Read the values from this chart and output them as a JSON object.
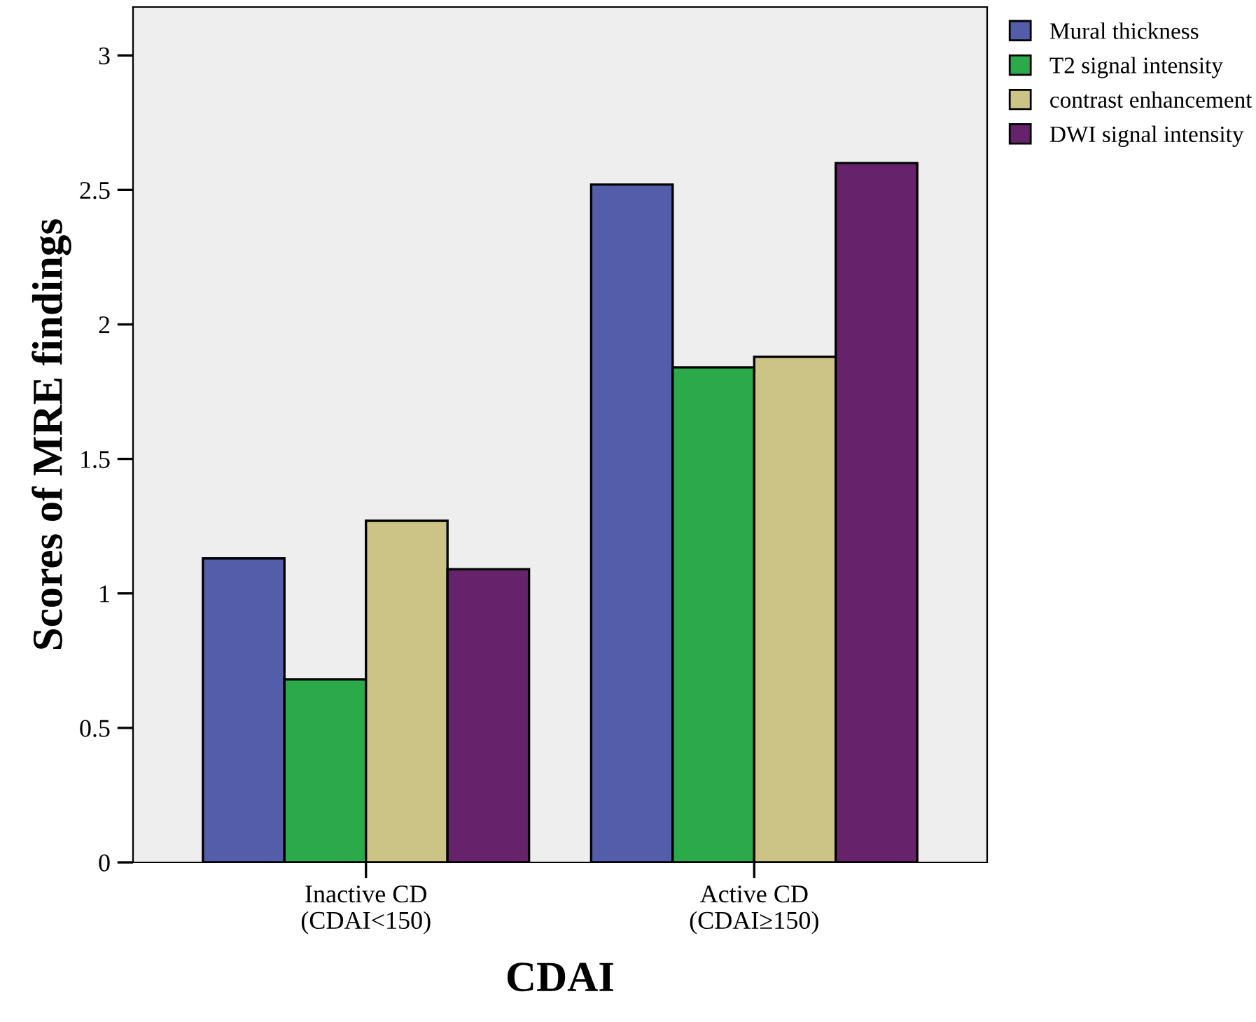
{
  "chart_data": {
    "type": "bar",
    "xlabel": "CDAI",
    "ylabel": "Scores of MRE findings",
    "categories": [
      "Inactive CD\n(CDAI<150)",
      "Active CD\n(CDAI≥150)"
    ],
    "series": [
      {
        "name": "Mural thickness",
        "color": "#535da9",
        "values": [
          1.13,
          2.52
        ]
      },
      {
        "name": "T2 signal intensity",
        "color": "#2ca94a",
        "values": [
          0.68,
          1.84
        ]
      },
      {
        "name": "contrast enhancement",
        "color": "#cbc486",
        "values": [
          1.27,
          1.88
        ]
      },
      {
        "name": "DWI signal intensity",
        "color": "#66236c",
        "values": [
          1.09,
          2.6
        ]
      }
    ],
    "ylim": [
      0,
      3.18
    ],
    "yticks": [
      0,
      0.5,
      1,
      1.5,
      2,
      2.5,
      3
    ],
    "grid": false,
    "legend": "top right"
  }
}
